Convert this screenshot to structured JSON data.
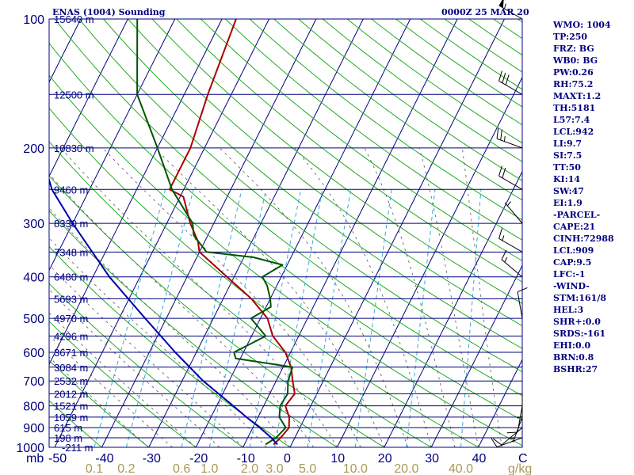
{
  "header": {
    "left_title": "ENAS (1004) Sounding",
    "right_title": "0000Z 25 MAR 20"
  },
  "indices": [
    "WMO: 1004",
    "TP:250",
    "FRZ: BG",
    "WB0: BG",
    "PW:0.26",
    "RH:75.2",
    "MAXT:1.2",
    "TH:5181",
    "L57:7.4",
    "LCL:942",
    "LI:9.7",
    "SI:7.5",
    "TT:50",
    "KI:14",
    "SW:47",
    "EI:1.9",
    "-PARCEL-",
    "CAPE:21",
    "CINH:72988",
    "LCL:909",
    "CAP:9.5",
    "LFC:-1",
    "-WIND-",
    "STM:161/8",
    "HEL:3",
    "SHR+:0.0",
    "SRDS:-161",
    "EHI:0.0",
    "BRN:0.8",
    "BSHR:27"
  ],
  "axis": {
    "p_unit": "mb",
    "mix_unit": "g/kg"
  },
  "colors": {
    "frame": "#000080",
    "isotherm": "#000080",
    "dry_adiabat": "#22aa22",
    "moist_adiabat": "#555555",
    "mixing_ratio": "#33aadd",
    "temperature": "#aa0000",
    "dewpoint": "#005500",
    "parcel": "#0000aa",
    "wind_barb": "#000000",
    "mix_label": "#aa9955"
  },
  "chart_data": {
    "type": "line",
    "title": "ENAS (1004) Sounding",
    "xlabel": "",
    "ylabel": "mb",
    "grid": true,
    "y_scale": "log",
    "ylim": [
      1000,
      100
    ],
    "xlim": [
      -50,
      0
    ],
    "pressure_ticks": [
      100,
      200,
      300,
      400,
      500,
      600,
      700,
      800,
      900,
      1000
    ],
    "temperature_ticks": [
      -50,
      -40,
      -30,
      -20,
      -10,
      0,
      10,
      20,
      30,
      40
    ],
    "mixing_ratio_ticks": [
      "0.1",
      "0.2",
      "0.6",
      "1.0",
      "2.0",
      "3.0",
      "5.0",
      "10.0",
      "20.0",
      "40.0"
    ],
    "mixing_ratio_values": [
      0.1,
      0.2,
      0.6,
      1.0,
      2.0,
      3.0,
      5.0,
      10.0,
      20.0,
      40.0
    ],
    "heights": [
      {
        "p": 100,
        "label": "15640 m"
      },
      {
        "p": 150,
        "label": "12500 m"
      },
      {
        "p": 200,
        "label": "10830 m"
      },
      {
        "p": 250,
        "label": "9460 m"
      },
      {
        "p": 300,
        "label": "8330 m"
      },
      {
        "p": 350,
        "label": "7348 m"
      },
      {
        "p": 400,
        "label": "6480 m"
      },
      {
        "p": 450,
        "label": "5693 m"
      },
      {
        "p": 500,
        "label": "4970 m"
      },
      {
        "p": 550,
        "label": "4296 m"
      },
      {
        "p": 600,
        "label": "3671 m"
      },
      {
        "p": 650,
        "label": "3084 m"
      },
      {
        "p": 700,
        "label": "2532 m"
      },
      {
        "p": 750,
        "label": "2012 m"
      },
      {
        "p": 800,
        "label": "1521 m"
      },
      {
        "p": 850,
        "label": "1059 m"
      },
      {
        "p": 900,
        "label": "615 m"
      },
      {
        "p": 950,
        "label": "198 m"
      },
      {
        "p": 1000,
        "label": "-211 m"
      }
    ],
    "series": [
      {
        "name": "temperature",
        "points": [
          [
            985,
            -3.8
          ],
          [
            950,
            -3.0
          ],
          [
            900,
            -2.3
          ],
          [
            850,
            -3.4
          ],
          [
            800,
            -5.4
          ],
          [
            750,
            -4.7
          ],
          [
            700,
            -6.5
          ],
          [
            650,
            -8.3
          ],
          [
            600,
            -11.1
          ],
          [
            550,
            -15.5
          ],
          [
            500,
            -18.5
          ],
          [
            450,
            -24.0
          ],
          [
            400,
            -31.5
          ],
          [
            350,
            -40.0
          ],
          [
            330,
            -41.5
          ],
          [
            300,
            -45.0
          ],
          [
            260,
            -49.3
          ],
          [
            250,
            -53.0
          ],
          [
            200,
            -53.0
          ],
          [
            150,
            -55.0
          ],
          [
            100,
            -57.0
          ]
        ]
      },
      {
        "name": "dewpoint",
        "points": [
          [
            985,
            -5.5
          ],
          [
            950,
            -4.0
          ],
          [
            900,
            -3.0
          ],
          [
            850,
            -5.5
          ],
          [
            800,
            -6.5
          ],
          [
            750,
            -6.2
          ],
          [
            700,
            -7.5
          ],
          [
            650,
            -8.0
          ],
          [
            620,
            -21.0
          ],
          [
            600,
            -22.0
          ],
          [
            550,
            -17.0
          ],
          [
            500,
            -22.0
          ],
          [
            470,
            -19.0
          ],
          [
            450,
            -20.0
          ],
          [
            420,
            -22.0
          ],
          [
            400,
            -24.0
          ],
          [
            375,
            -21.0
          ],
          [
            360,
            -28.0
          ],
          [
            350,
            -38.5
          ],
          [
            320,
            -43.0
          ],
          [
            300,
            -44.5
          ],
          [
            250,
            -52.5
          ],
          [
            200,
            -60.0
          ],
          [
            150,
            -70.0
          ],
          [
            100,
            -78.0
          ]
        ]
      },
      {
        "name": "parcel",
        "points": [
          [
            985,
            -3.0
          ],
          [
            950,
            -5.0
          ],
          [
            900,
            -8.5
          ],
          [
            850,
            -12.5
          ],
          [
            800,
            -16.5
          ],
          [
            700,
            -25.5
          ],
          [
            600,
            -34.5
          ],
          [
            500,
            -44.5
          ],
          [
            400,
            -56.5
          ],
          [
            300,
            -70.0
          ],
          [
            250,
            -78.0
          ],
          [
            200,
            -85.0
          ],
          [
            150,
            -90.0
          ],
          [
            120,
            -94.0
          ]
        ]
      }
    ],
    "wind_barbs": [
      {
        "p": 100,
        "dir": 300,
        "speed_kt": 55
      },
      {
        "p": 150,
        "dir": 300,
        "speed_kt": 30
      },
      {
        "p": 200,
        "dir": 290,
        "speed_kt": 25
      },
      {
        "p": 250,
        "dir": 300,
        "speed_kt": 20
      },
      {
        "p": 300,
        "dir": 320,
        "speed_kt": 5
      },
      {
        "p": 350,
        "dir": 300,
        "speed_kt": 15
      },
      {
        "p": 400,
        "dir": 310,
        "speed_kt": 15
      },
      {
        "p": 500,
        "dir": 350,
        "speed_kt": 10
      },
      {
        "p": 750,
        "dir": 180,
        "speed_kt": 5
      },
      {
        "p": 800,
        "dir": 190,
        "speed_kt": 10
      },
      {
        "p": 850,
        "dir": 200,
        "speed_kt": 5
      },
      {
        "p": 900,
        "dir": 230,
        "speed_kt": 10
      },
      {
        "p": 950,
        "dir": 250,
        "speed_kt": 10
      }
    ]
  }
}
